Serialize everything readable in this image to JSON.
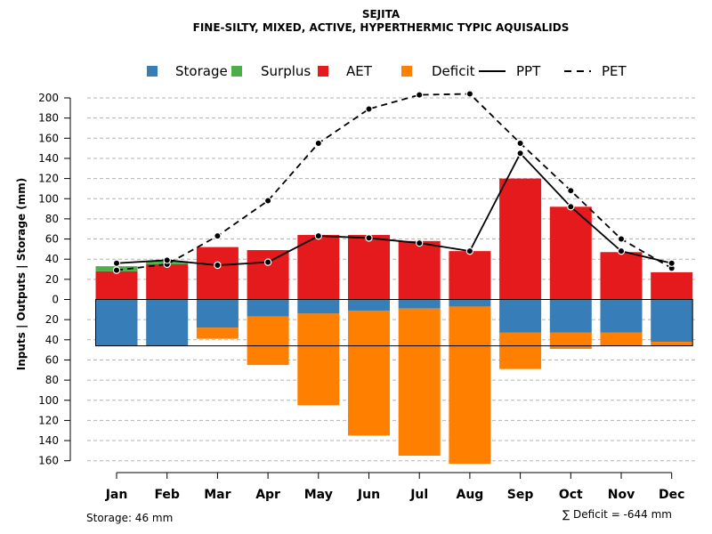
{
  "chart_data": {
    "type": "bar",
    "title": "SEJITA",
    "subtitle": "FINE-SILTY, MIXED, ACTIVE, HYPERTHERMIC TYPIC AQUISALIDS",
    "ylabel": "Inputs | Outputs | Storage     (mm)",
    "ylim": [
      -160,
      210
    ],
    "grid": true,
    "legend_position": "top",
    "categories": [
      "Jan",
      "Feb",
      "Mar",
      "Apr",
      "May",
      "Jun",
      "Jul",
      "Aug",
      "Sep",
      "Oct",
      "Nov",
      "Dec"
    ],
    "y_ticks": [
      {
        "value": 200,
        "label": "200"
      },
      {
        "value": 180,
        "label": "180"
      },
      {
        "value": 160,
        "label": "160"
      },
      {
        "value": 140,
        "label": "140"
      },
      {
        "value": 120,
        "label": "120"
      },
      {
        "value": 100,
        "label": "100"
      },
      {
        "value": 80,
        "label": "80"
      },
      {
        "value": 60,
        "label": "60"
      },
      {
        "value": 40,
        "label": "40"
      },
      {
        "value": 20,
        "label": "20"
      },
      {
        "value": 0,
        "label": "0"
      },
      {
        "value": -20,
        "label": "20"
      },
      {
        "value": -40,
        "label": "40"
      },
      {
        "value": -60,
        "label": "60"
      },
      {
        "value": -80,
        "label": "80"
      },
      {
        "value": -100,
        "label": "100"
      },
      {
        "value": -120,
        "label": "120"
      },
      {
        "value": -140,
        "label": "140"
      },
      {
        "value": -160,
        "label": "160"
      }
    ],
    "legend": [
      {
        "key": "storage",
        "label": "Storage",
        "kind": "box",
        "color": "#377eb8"
      },
      {
        "key": "surplus",
        "label": "Surplus",
        "kind": "box",
        "color": "#4daf4a"
      },
      {
        "key": "aet",
        "label": "AET",
        "kind": "box",
        "color": "#e41a1c"
      },
      {
        "key": "deficit",
        "label": "Deficit",
        "kind": "box",
        "color": "#ff7f00"
      },
      {
        "key": "ppt",
        "label": "PPT",
        "kind": "solid",
        "color": "#000000"
      },
      {
        "key": "pet",
        "label": "PET",
        "kind": "dashed",
        "color": "#000000"
      }
    ],
    "series": [
      {
        "name": "AET",
        "color": "#e41a1c",
        "values": [
          28,
          35,
          52,
          49,
          64,
          64,
          58,
          48,
          120,
          92,
          47,
          27
        ]
      },
      {
        "name": "Surplus",
        "color": "#4daf4a",
        "values": [
          5,
          3,
          0,
          0,
          0,
          0,
          0,
          0,
          0,
          0,
          0,
          0
        ]
      },
      {
        "name": "Storage",
        "color": "#377eb8",
        "values": [
          46,
          46,
          28,
          17,
          14,
          11,
          9,
          7,
          33,
          33,
          33,
          42
        ]
      },
      {
        "name": "Deficit",
        "color": "#ff7f00",
        "values": [
          0,
          0,
          11,
          48,
          91,
          124,
          146,
          156,
          36,
          16,
          13,
          4
        ]
      },
      {
        "name": "PPT",
        "color": "#000000",
        "style": "solid",
        "values": [
          36,
          39,
          34,
          37,
          63,
          61,
          56,
          48,
          145,
          92,
          48,
          36
        ]
      },
      {
        "name": "PET",
        "color": "#000000",
        "style": "dashed",
        "values": [
          29,
          35,
          63,
          98,
          155,
          189,
          203,
          204,
          155,
          108,
          60,
          31
        ]
      }
    ],
    "storage_capacity": 46,
    "storage_note": "Storage: 46 mm",
    "deficit_note": "∑ Deficit = -644 mm"
  }
}
